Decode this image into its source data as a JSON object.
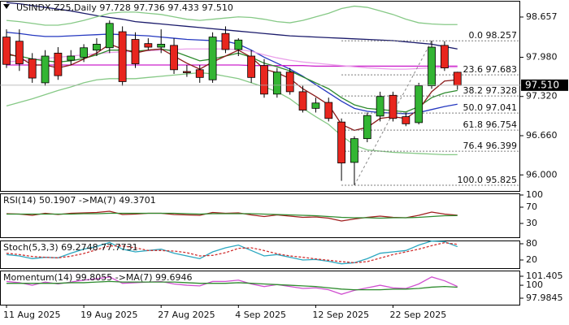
{
  "chart_data": [
    {
      "type": "candlestick",
      "title": "USINDX.Z25,Daily",
      "ohlc_text": "97.728 97.736 97.433 97.510",
      "categories": [
        "11 Aug 2025",
        null,
        null,
        null,
        null,
        null,
        "19 Aug 2025",
        null,
        null,
        null,
        null,
        null,
        "27 Aug 2025",
        null,
        null,
        null,
        null,
        null,
        "4 Sep 2025",
        null,
        null,
        null,
        null,
        null,
        "12 Sep 2025",
        null,
        null,
        null,
        null,
        null,
        "22 Sep 2025",
        null,
        null,
        null,
        null,
        null
      ],
      "open": [
        98.32,
        98.25,
        97.95,
        97.55,
        98.05,
        97.93,
        97.98,
        98.1,
        98.14,
        98.41,
        98.28,
        98.21,
        98.15,
        98.18,
        97.74,
        97.77,
        97.6,
        98.38,
        98.11,
        98.0,
        97.84,
        97.36,
        97.73,
        97.4,
        97.12,
        97.22,
        96.89,
        96.21,
        96.61,
        96.99,
        97.34,
        96.98,
        96.88,
        97.5,
        98.18,
        97.728
      ],
      "high": [
        98.45,
        98.45,
        98.05,
        98.1,
        98.15,
        98.1,
        98.2,
        98.3,
        98.6,
        98.5,
        98.4,
        98.3,
        98.45,
        98.3,
        97.85,
        97.85,
        98.4,
        98.5,
        98.3,
        98.1,
        97.95,
        97.8,
        97.8,
        97.5,
        97.3,
        97.3,
        96.95,
        96.65,
        97.05,
        97.4,
        97.4,
        97.05,
        97.55,
        98.26,
        98.25,
        97.736
      ],
      "low": [
        97.8,
        97.75,
        97.55,
        97.5,
        97.6,
        97.85,
        97.9,
        98.0,
        98.05,
        97.5,
        97.8,
        98.1,
        98.05,
        97.7,
        97.65,
        97.55,
        97.55,
        98.05,
        98.0,
        97.55,
        97.3,
        97.3,
        97.35,
        97.05,
        97.05,
        96.9,
        95.9,
        95.83,
        96.55,
        96.9,
        96.9,
        96.82,
        96.85,
        97.45,
        97.75,
        97.433
      ],
      "close": [
        97.86,
        97.87,
        97.63,
        98.0,
        97.67,
        98.0,
        98.14,
        98.2,
        98.55,
        97.57,
        97.87,
        98.15,
        98.2,
        97.77,
        97.72,
        97.64,
        98.32,
        98.11,
        98.27,
        97.64,
        97.36,
        97.73,
        97.4,
        97.09,
        97.21,
        96.95,
        96.2,
        96.61,
        97.0,
        97.32,
        96.95,
        96.86,
        97.5,
        98.15,
        97.8,
        97.51
      ],
      "up_color": "#33b533",
      "down_color": "#e8261e",
      "series": [
        {
          "color": "#1b1b6b",
          "values": [
            98.9,
            98.88,
            98.85,
            98.82,
            98.79,
            98.76,
            98.72,
            98.68,
            98.65,
            98.62,
            98.58,
            98.56,
            98.54,
            98.52,
            98.5,
            98.48,
            98.46,
            98.44,
            98.42,
            98.4,
            98.38,
            98.36,
            98.34,
            98.33,
            98.32,
            98.31,
            98.3,
            98.29,
            98.28,
            98.27,
            98.26,
            98.24,
            98.22,
            98.2,
            98.16,
            98.12
          ]
        },
        {
          "color": "#2538c0",
          "values": [
            98.4,
            98.38,
            98.35,
            98.33,
            98.33,
            98.34,
            98.35,
            98.36,
            98.37,
            98.36,
            98.35,
            98.34,
            98.32,
            98.3,
            98.28,
            98.27,
            98.26,
            98.25,
            98.2,
            98.1,
            97.98,
            97.88,
            97.78,
            97.66,
            97.52,
            97.38,
            97.24,
            97.12,
            97.07,
            97.05,
            97.04,
            97.03,
            97.05,
            97.1,
            97.15,
            97.19
          ]
        },
        {
          "color": "#cc22cc",
          "values": [
            97.85,
            97.85,
            97.85,
            97.85,
            97.85,
            97.85,
            97.85,
            97.85,
            97.85,
            97.85,
            97.85,
            97.85,
            97.85,
            97.85,
            97.85,
            97.85,
            97.85,
            97.85,
            97.85,
            97.84,
            97.84,
            97.84,
            97.84,
            97.84,
            97.83,
            97.83,
            97.83,
            97.83,
            97.83,
            97.83,
            97.83,
            97.83,
            97.83,
            97.83,
            97.83,
            97.83
          ]
        },
        {
          "color": "#eaa0ea",
          "values": [
            97.9,
            97.92,
            97.94,
            97.96,
            97.98,
            98.0,
            98.02,
            98.04,
            98.06,
            98.07,
            98.08,
            98.09,
            98.1,
            98.11,
            98.12,
            98.12,
            98.12,
            98.12,
            98.11,
            98.08,
            98.02,
            97.97,
            97.93,
            97.9,
            97.88,
            97.86,
            97.84,
            97.82,
            97.8,
            97.79,
            97.78,
            97.78,
            97.79,
            97.8,
            97.81,
            97.81
          ]
        },
        {
          "color": "#2e8b2e",
          "values": [
            98.02,
            98.0,
            97.95,
            97.92,
            97.9,
            97.92,
            97.96,
            98.02,
            98.1,
            98.1,
            98.08,
            98.1,
            98.12,
            98.08,
            98.0,
            97.92,
            97.95,
            98.0,
            98.05,
            97.98,
            97.88,
            97.82,
            97.75,
            97.65,
            97.55,
            97.45,
            97.3,
            97.18,
            97.12,
            97.1,
            97.08,
            97.06,
            97.15,
            97.3,
            97.38,
            97.42
          ]
        },
        {
          "color": "#8b1a1a",
          "values": [
            98.05,
            97.98,
            97.85,
            97.85,
            97.8,
            97.85,
            97.95,
            98.05,
            98.2,
            98.12,
            98.05,
            98.1,
            98.12,
            98.0,
            97.88,
            97.78,
            97.9,
            98.0,
            98.1,
            97.98,
            97.78,
            97.72,
            97.62,
            97.45,
            97.32,
            97.18,
            96.85,
            96.75,
            96.8,
            96.95,
            96.98,
            96.95,
            97.1,
            97.4,
            97.58,
            97.6
          ]
        },
        {
          "color": "#86c986",
          "values": [
            98.6,
            98.58,
            98.55,
            98.52,
            98.52,
            98.55,
            98.6,
            98.66,
            98.72,
            98.74,
            98.74,
            98.72,
            98.7,
            98.66,
            98.62,
            98.6,
            98.62,
            98.64,
            98.66,
            98.65,
            98.62,
            98.58,
            98.56,
            98.6,
            98.66,
            98.72,
            98.8,
            98.84,
            98.82,
            98.76,
            98.7,
            98.62,
            98.56,
            98.54,
            98.53,
            98.53
          ]
        },
        {
          "color": "#86c986",
          "values": [
            97.16,
            97.22,
            97.28,
            97.35,
            97.42,
            97.48,
            97.55,
            97.6,
            97.62,
            97.62,
            97.62,
            97.64,
            97.66,
            97.68,
            97.7,
            97.72,
            97.7,
            97.66,
            97.62,
            97.55,
            97.48,
            97.4,
            97.28,
            97.12,
            96.98,
            96.85,
            96.66,
            96.5,
            96.42,
            96.4,
            96.38,
            96.37,
            96.36,
            96.35,
            96.34,
            96.34
          ]
        }
      ],
      "fib_levels": [
        {
          "label": "0.0",
          "value": 98.257
        },
        {
          "label": "23.6",
          "value": 97.683
        },
        {
          "label": "38.2",
          "value": 97.328
        },
        {
          "label": "50.0",
          "value": 97.041
        },
        {
          "label": "61.8",
          "value": 96.754
        },
        {
          "label": "76.4",
          "value": 96.399
        },
        {
          "label": "100.0",
          "value": 95.825
        }
      ],
      "last_price": {
        "value": 97.51,
        "label": "97.510"
      },
      "ylim": [
        95.73,
        98.93
      ],
      "yticks": [
        {
          "value": 98.657,
          "label": "98.657"
        },
        {
          "value": 97.98,
          "label": "97.980"
        },
        {
          "value": 97.32,
          "label": "97.320"
        },
        {
          "value": 96.66,
          "label": "96.660"
        },
        {
          "value": 96,
          "label": "96.000"
        }
      ]
    },
    {
      "type": "line",
      "title": "RSI(14) 50.1907 ->MA(7) 49.3701",
      "ylim": [
        -4,
        104
      ],
      "yticks": [
        30,
        70,
        100
      ],
      "series": [
        {
          "color": "#a01e1e",
          "values": [
            54,
            53,
            50,
            55,
            52,
            55,
            56,
            57,
            60,
            52,
            53,
            55,
            55,
            52,
            51,
            50,
            57,
            55,
            56,
            51,
            47,
            51,
            48,
            45,
            46,
            43,
            36,
            41,
            45,
            48,
            45,
            44,
            50,
            58,
            53,
            50.1907
          ]
        },
        {
          "color": "#2e8b2e",
          "values": [
            53,
            53,
            53,
            53,
            53,
            53,
            54,
            54,
            55,
            55,
            55,
            55,
            55,
            55,
            54,
            53,
            54,
            54,
            54,
            54,
            53,
            52,
            51,
            50,
            49,
            47,
            45,
            44,
            44,
            43,
            44,
            44,
            45,
            47,
            49,
            49.3701
          ]
        }
      ]
    },
    {
      "type": "line",
      "title": "Stoch(5,3,3) 69.2748 77.7731",
      "ylim": [
        -10,
        92
      ],
      "yticks": [
        20,
        80
      ],
      "series": [
        {
          "color": "#2aa7c0",
          "values": [
            40,
            35,
            25,
            30,
            28,
            45,
            60,
            70,
            85,
            60,
            50,
            55,
            60,
            45,
            35,
            25,
            50,
            65,
            75,
            55,
            35,
            40,
            30,
            20,
            22,
            15,
            6,
            10,
            25,
            45,
            50,
            55,
            75,
            90,
            88,
            69.2748
          ]
        },
        {
          "color": "#d03030",
          "line_style": "dashed",
          "values": [
            45,
            40,
            33,
            30,
            28,
            34,
            44,
            58,
            72,
            72,
            65,
            55,
            55,
            53,
            47,
            35,
            37,
            47,
            63,
            65,
            55,
            43,
            35,
            30,
            24,
            19,
            14,
            10,
            14,
            27,
            40,
            50,
            60,
            73,
            84,
            77.7731
          ]
        }
      ]
    },
    {
      "type": "line",
      "title": "Momentum(14) 99.8055 ->MA(7) 99.6946",
      "ylim": [
        96.97,
        102.29
      ],
      "yticks": [
        97.9845,
        100,
        101.405
      ],
      "series": [
        {
          "color": "#d050d0",
          "values": [
            100.6,
            100.4,
            100.0,
            100.5,
            100.2,
            100.5,
            100.8,
            101.0,
            101.3,
            100.3,
            100.4,
            100.5,
            100.6,
            100.2,
            100.0,
            99.9,
            100.6,
            100.6,
            100.8,
            100.2,
            99.8,
            100.1,
            99.8,
            99.5,
            99.6,
            99.3,
            98.6,
            99.2,
            99.6,
            100.0,
            99.6,
            99.5,
            100.2,
            101.3,
            100.7,
            99.8055
          ]
        },
        {
          "color": "#2e8b2e",
          "values": [
            100.3,
            100.3,
            100.3,
            100.3,
            100.3,
            100.4,
            100.4,
            100.5,
            100.6,
            100.5,
            100.5,
            100.5,
            100.5,
            100.5,
            100.4,
            100.3,
            100.3,
            100.3,
            100.4,
            100.3,
            100.2,
            100.1,
            100.0,
            99.9,
            99.8,
            99.6,
            99.4,
            99.3,
            99.3,
            99.3,
            99.4,
            99.4,
            99.5,
            99.7,
            99.8,
            99.6946
          ]
        }
      ]
    }
  ]
}
